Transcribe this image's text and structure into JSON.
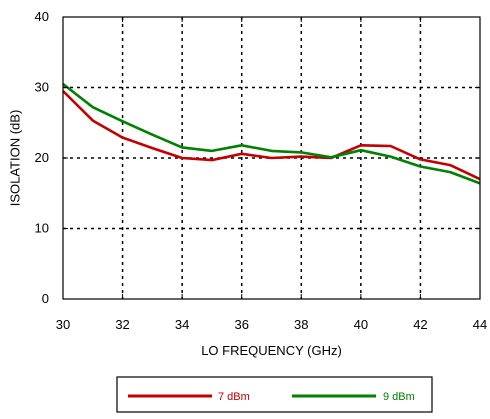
{
  "chart_data": {
    "type": "line",
    "title": "",
    "xlabel": "LO FREQUENCY (GHz)",
    "ylabel": "ISOLATION  (dB)",
    "xlim": [
      30,
      44
    ],
    "ylim": [
      0,
      40
    ],
    "x_ticks": [
      30,
      32,
      34,
      36,
      38,
      40,
      42,
      44
    ],
    "y_ticks": [
      0,
      10,
      20,
      30,
      40
    ],
    "grid": true,
    "grid_style": "dotted",
    "legend_position": "bottom-center",
    "x": [
      30,
      31,
      32,
      33,
      34,
      35,
      36,
      37,
      38,
      39,
      40,
      41,
      42,
      43,
      44
    ],
    "series": [
      {
        "name": "7 dBm",
        "color": "#c00000",
        "values": [
          29.5,
          25.3,
          22.9,
          21.4,
          20.0,
          19.7,
          20.6,
          20.0,
          20.2,
          20.0,
          21.8,
          21.7,
          19.8,
          19.0,
          17.0
        ]
      },
      {
        "name": "9 dBm",
        "color": "#008000",
        "values": [
          30.5,
          27.2,
          25.2,
          23.3,
          21.5,
          21.0,
          21.8,
          21.0,
          20.8,
          20.1,
          21.1,
          20.2,
          18.8,
          18.0,
          16.4
        ]
      }
    ]
  }
}
